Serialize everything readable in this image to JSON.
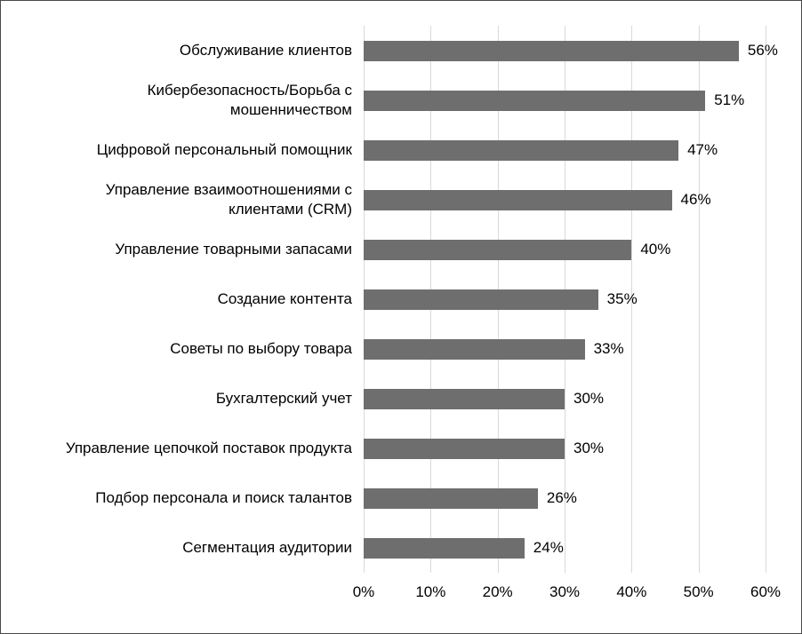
{
  "chart_data": {
    "type": "bar",
    "orientation": "horizontal",
    "title": "",
    "xlabel": "",
    "ylabel": "",
    "categories": [
      "Обслуживание клиентов",
      "Кибербезопасность/Борьба с\nмошенничеством",
      "Цифровой персональный помощник",
      "Управление взаимоотношениями с\nклиентами (CRM)",
      "Управление товарными запасами",
      "Создание контента",
      "Советы по выбору товара",
      "Бухгалтерский учет",
      "Управление цепочкой поставок продукта",
      "Подбор персонала и поиск талантов",
      "Сегментация аудитории"
    ],
    "values": [
      56,
      51,
      47,
      46,
      40,
      35,
      33,
      30,
      30,
      26,
      24
    ],
    "value_suffix": "%",
    "data_labels": [
      "56%",
      "51%",
      "47%",
      "46%",
      "40%",
      "35%",
      "33%",
      "30%",
      "30%",
      "26%",
      "24%"
    ],
    "xlim": [
      0,
      60
    ],
    "xticks": [
      0,
      10,
      20,
      30,
      40,
      50,
      60
    ],
    "xtick_labels": [
      "0%",
      "10%",
      "20%",
      "30%",
      "40%",
      "50%",
      "60%"
    ],
    "grid": true,
    "legend": false,
    "bar_color": "#6e6e6e",
    "gridline_color": "#d9d9d9",
    "text_color": "#000000",
    "border_color": "#4a4a4a"
  }
}
